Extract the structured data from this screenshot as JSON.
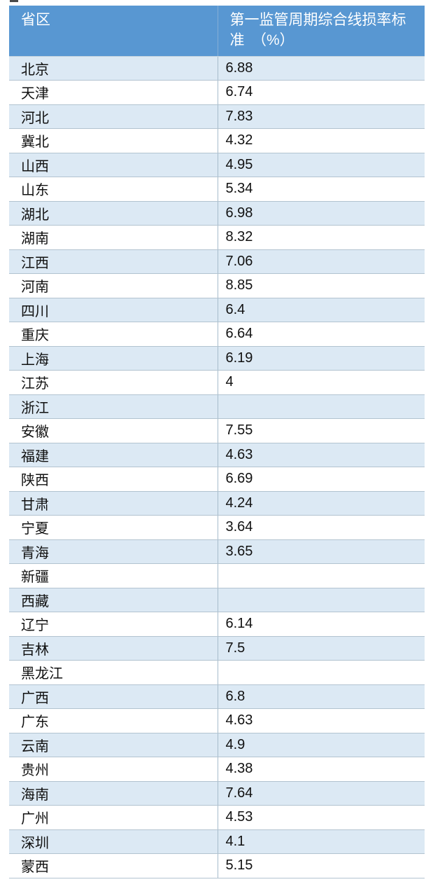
{
  "page": {
    "background": "#ffffff"
  },
  "colors": {
    "header_bg": "#5897d2",
    "header_text": "#ffffff",
    "band_row_bg": "#dce9f4",
    "plain_row_bg": "#ffffff",
    "grid_line": "#b2c3d0",
    "body_text": "#111111"
  },
  "chart_data": {
    "type": "table",
    "columns": [
      "省区",
      "第一监管周期综合线损率标准　（%）"
    ],
    "col2_header_lines": [
      "第一监管周期综合线损率标",
      "准　（%）"
    ],
    "rows": [
      [
        "北京",
        "6.88"
      ],
      [
        "天津",
        "6.74"
      ],
      [
        "河北",
        "7.83"
      ],
      [
        "冀北",
        "4.32"
      ],
      [
        "山西",
        "4.95"
      ],
      [
        "山东",
        "5.34"
      ],
      [
        "湖北",
        "6.98"
      ],
      [
        "湖南",
        "8.32"
      ],
      [
        "江西",
        "7.06"
      ],
      [
        "河南",
        "8.85"
      ],
      [
        "四川",
        "6.4"
      ],
      [
        "重庆",
        "6.64"
      ],
      [
        "上海",
        "6.19"
      ],
      [
        "江苏",
        "4"
      ],
      [
        "浙江",
        ""
      ],
      [
        "安徽",
        "7.55"
      ],
      [
        "福建",
        "4.63"
      ],
      [
        "陕西",
        "6.69"
      ],
      [
        "甘肃",
        "4.24"
      ],
      [
        "宁夏",
        "3.64"
      ],
      [
        "青海",
        "3.65"
      ],
      [
        "新疆",
        ""
      ],
      [
        "西藏",
        ""
      ],
      [
        "辽宁",
        "6.14"
      ],
      [
        "吉林",
        "7.5"
      ],
      [
        "黑龙江",
        ""
      ],
      [
        "广西",
        "6.8"
      ],
      [
        "广东",
        "4.63"
      ],
      [
        "云南",
        "4.9"
      ],
      [
        "贵州",
        "4.38"
      ],
      [
        "海南",
        "7.64"
      ],
      [
        "广州",
        "4.53"
      ],
      [
        "深圳",
        "4.1"
      ],
      [
        "蒙西",
        "5.15"
      ]
    ]
  }
}
